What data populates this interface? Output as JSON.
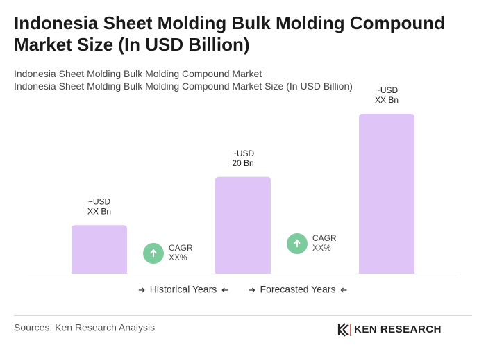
{
  "chart_data": {
    "type": "bar",
    "title": "Indonesia Sheet Molding Bulk Molding Compound Market Size (In USD Billion)",
    "subtitle": [
      "Indonesia Sheet Molding Bulk Molding Compound Market",
      "Indonesia Sheet Molding Bulk Molding Compound Market Size (In USD Billion)"
    ],
    "categories": [
      null,
      null,
      null
    ],
    "values": [
      10,
      20,
      33
    ],
    "value_labels": [
      [
        "~USD",
        "XX Bn"
      ],
      [
        "~USD",
        "20 Bn"
      ],
      [
        "~USD",
        "XX Bn"
      ]
    ],
    "color": "#dfc4f8",
    "cagr_labels": [
      [
        "CAGR",
        "XX%"
      ],
      [
        "CAGR",
        "XX%"
      ]
    ],
    "cagr_color": "#7ccb9d",
    "periods": [
      "Historical Years",
      "Forecasted Years"
    ],
    "source": "Sources: Ken Research Analysis",
    "brand": "KEN RESEARCH"
  }
}
